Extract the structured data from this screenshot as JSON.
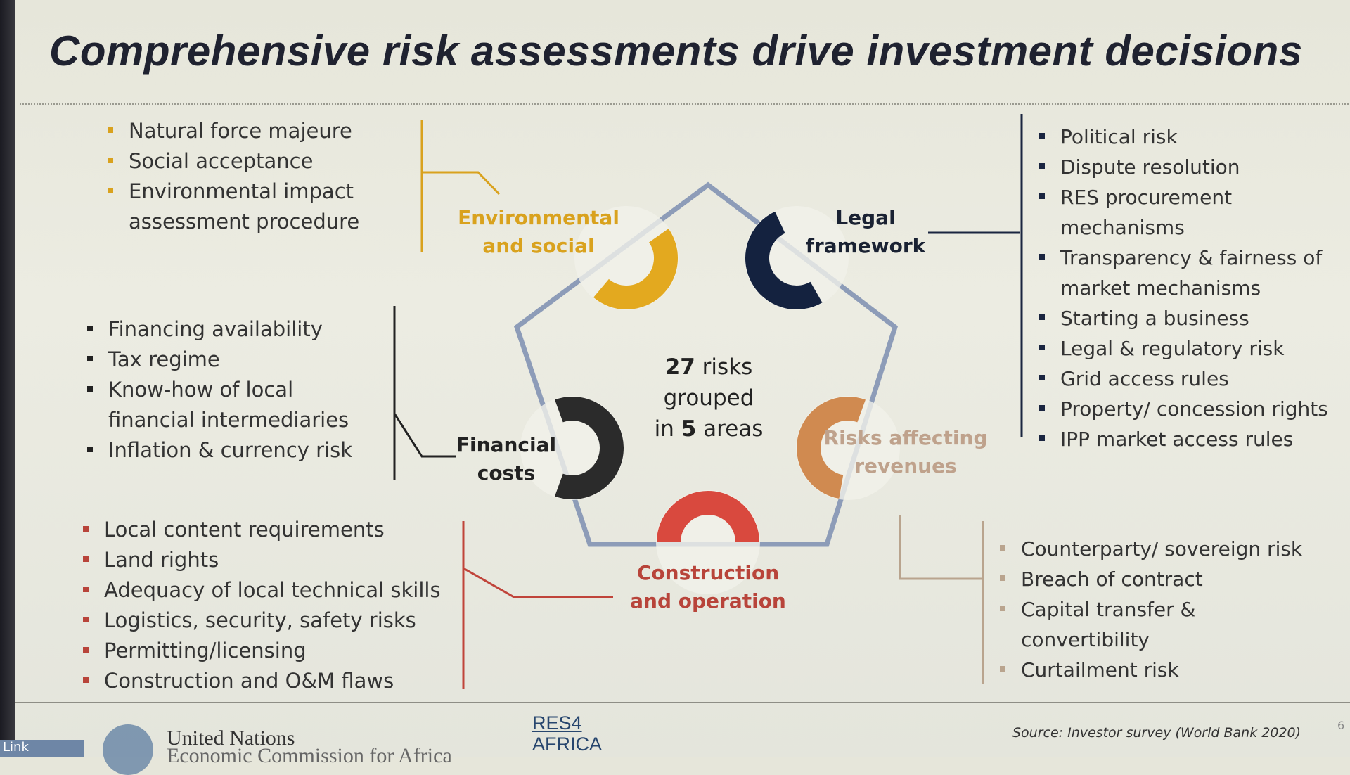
{
  "title": "Comprehensive risk assessments drive investment decisions",
  "center_text": {
    "line1_num": "27",
    "line1_rest": " risks",
    "line2": "grouped",
    "line3_pre": "in ",
    "line3_num": "5",
    "line3_rest": " areas"
  },
  "areas": {
    "environmental": {
      "label1": "Environmental",
      "label2": "and social",
      "color": "#e3a91f",
      "items": [
        "Natural force majeure",
        "Social acceptance",
        "Environmental impact",
        "assessment procedure"
      ]
    },
    "legal": {
      "label1": "Legal",
      "label2": "framework",
      "color": "#14223f",
      "items": [
        "Political risk",
        "Dispute resolution",
        "RES procurement",
        "mechanisms",
        "Transparency & fairness of",
        "market mechanisms",
        "Starting a business",
        "Legal & regulatory risk",
        "Grid access rules",
        "Property/ concession rights",
        "IPP market access rules"
      ]
    },
    "financial": {
      "label1": "Financial",
      "label2": "costs",
      "color": "#2b2b2b",
      "items": [
        "Financing availability",
        "Tax regime",
        "Know-how of local",
        "financial intermediaries",
        "Inflation & currency risk"
      ]
    },
    "revenues": {
      "label1": "Risks affecting",
      "label2": "revenues",
      "color": "#d08a50",
      "items": [
        "Counterparty/ sovereign risk",
        "Breach of contract",
        "Capital transfer &",
        "convertibility",
        "Curtailment risk"
      ]
    },
    "construction": {
      "label1": "Construction",
      "label2": "and operation",
      "color": "#d9493e",
      "items": [
        "Local content requirements",
        "Land rights",
        "Adequacy of local technical skills",
        "Logistics, security, safety risks",
        "Permitting/licensing",
        "Construction and O&M flaws"
      ]
    }
  },
  "footer": {
    "un_name": "United Nations",
    "un_sub": "Economic Commission for Africa",
    "res_logo_1": "RES4",
    "res_logo_2": "AFRICA",
    "source": "Source: Investor survey  (World Bank 2020)",
    "page_number": "6",
    "taskbar_label": "Link"
  },
  "pentagon_color": "#8d9cb8"
}
